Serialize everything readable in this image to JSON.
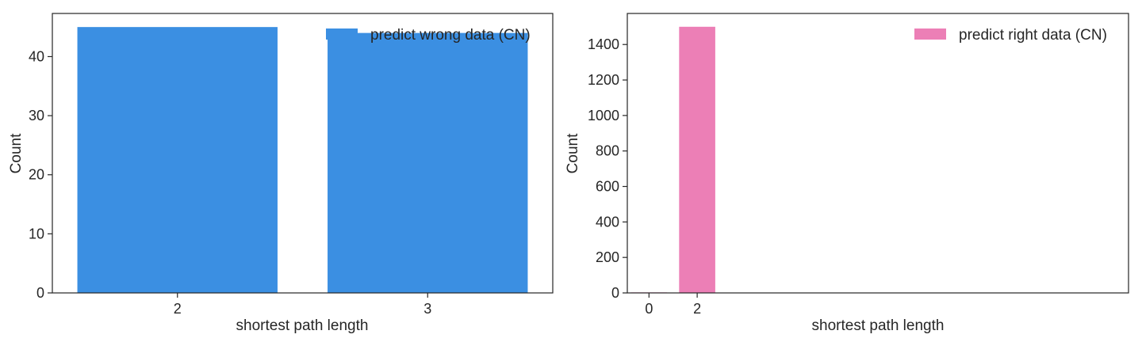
{
  "chart_data": [
    {
      "type": "bar",
      "categories": [
        "2",
        "3"
      ],
      "series": [
        {
          "name": "predict wrong data (CN)",
          "values": [
            45,
            44
          ],
          "color": "#3b8fe2"
        }
      ],
      "xlabel": "shortest path length",
      "ylabel": "Count",
      "ylim": [
        0,
        47.3
      ],
      "yticks": [
        0,
        10,
        20,
        30,
        40
      ],
      "grid": false,
      "legend_position": "top-right"
    },
    {
      "type": "bar",
      "x": [
        0,
        2
      ],
      "series": [
        {
          "name": "predict right data (CN)",
          "values": [
            3,
            1500
          ],
          "color": "#ec7fb6"
        }
      ],
      "xlabel": "shortest path length",
      "ylabel": "Count",
      "xticks": [
        0,
        2
      ],
      "xlim": [
        -0.9,
        19.9
      ],
      "ylim": [
        0,
        1575
      ],
      "yticks": [
        0,
        200,
        400,
        600,
        800,
        1000,
        1200,
        1400
      ],
      "grid": false,
      "legend_position": "top-right"
    }
  ]
}
